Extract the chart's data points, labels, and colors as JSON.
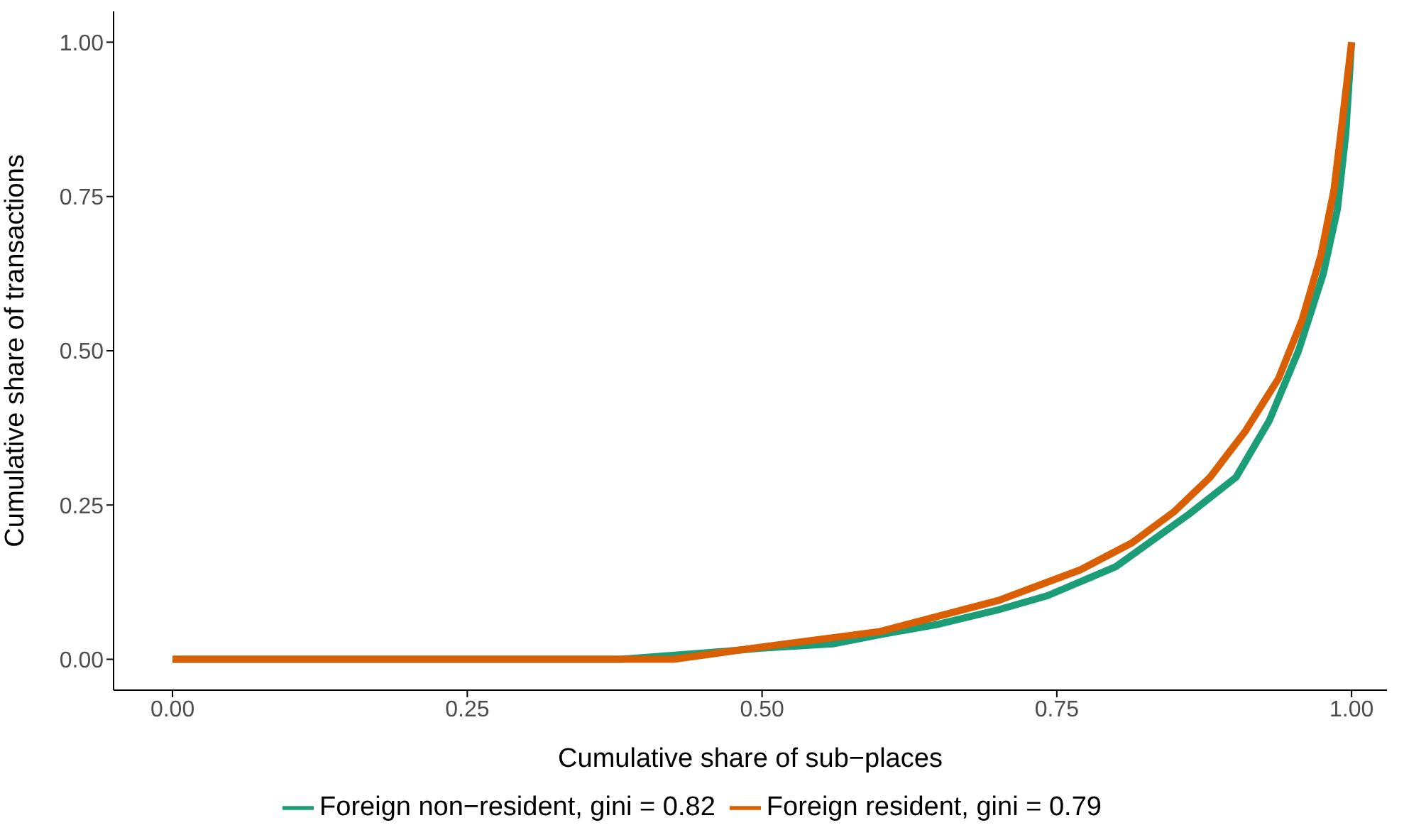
{
  "chart_data": {
    "type": "line",
    "xlabel": "Cumulative share of sub−places",
    "ylabel": "Cumulative share of transactions",
    "xlim": [
      -0.05,
      1.03
    ],
    "ylim": [
      -0.05,
      1.05
    ],
    "xticks": [
      {
        "value": 0,
        "label": "0.00"
      },
      {
        "value": 0.25,
        "label": "0.25"
      },
      {
        "value": 0.5,
        "label": "0.50"
      },
      {
        "value": 0.75,
        "label": "0.75"
      },
      {
        "value": 1,
        "label": "1.00"
      }
    ],
    "yticks": [
      {
        "value": 0,
        "label": "0.00"
      },
      {
        "value": 0.25,
        "label": "0.25"
      },
      {
        "value": 0.5,
        "label": "0.50"
      },
      {
        "value": 0.75,
        "label": "0.75"
      },
      {
        "value": 1,
        "label": "1.00"
      }
    ],
    "grid": false,
    "legend": "bottom",
    "marker": "none",
    "line_style": "solid",
    "series": [
      {
        "name": "Foreign non−resident, gini = 0.82",
        "color": "#1b9e77",
        "x": [
          0,
          0.38,
          0.45,
          0.5,
          0.56,
          0.6,
          0.65,
          0.7,
          0.742,
          0.8,
          0.862,
          0.902,
          0.93,
          0.955,
          0.976,
          0.988,
          0.995,
          1.0
        ],
        "values": [
          0,
          0,
          0.01,
          0.018,
          0.025,
          0.04,
          0.057,
          0.08,
          0.103,
          0.15,
          0.235,
          0.295,
          0.386,
          0.5,
          0.625,
          0.73,
          0.85,
          1.0
        ]
      },
      {
        "name": "Foreign resident, gini = 0.79",
        "color": "#d95f02",
        "x": [
          0,
          0.425,
          0.5,
          0.6,
          0.65,
          0.7,
          0.77,
          0.814,
          0.85,
          0.88,
          0.91,
          0.938,
          0.958,
          0.974,
          0.985,
          0.992,
          1.0
        ],
        "values": [
          0,
          0,
          0.02,
          0.045,
          0.07,
          0.095,
          0.145,
          0.189,
          0.24,
          0.295,
          0.37,
          0.455,
          0.55,
          0.655,
          0.76,
          0.87,
          1.0
        ]
      }
    ]
  }
}
